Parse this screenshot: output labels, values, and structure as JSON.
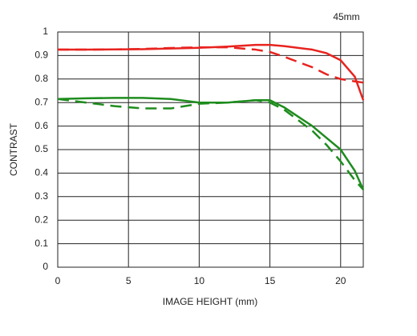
{
  "chart_data": {
    "type": "line",
    "title": "45mm",
    "x_label": "IMAGE HEIGHT (mm)",
    "y_label": "CONTRAST",
    "x": [
      0,
      2,
      4,
      6,
      8,
      10,
      12,
      14,
      15,
      16,
      18,
      19,
      20,
      21,
      21.6
    ],
    "series": [
      {
        "color": "#e8231f",
        "dash": false,
        "values": [
          0.925,
          0.925,
          0.926,
          0.927,
          0.93,
          0.933,
          0.938,
          0.945,
          0.945,
          0.94,
          0.925,
          0.91,
          0.88,
          0.81,
          0.71
        ]
      },
      {
        "color": "#e8231f",
        "dash": true,
        "values": [
          0.925,
          0.925,
          0.926,
          0.928,
          0.932,
          0.935,
          0.935,
          0.925,
          0.915,
          0.895,
          0.85,
          0.82,
          0.8,
          0.79,
          0.785
        ]
      },
      {
        "color": "#1e8c1e",
        "dash": false,
        "values": [
          0.715,
          0.718,
          0.72,
          0.72,
          0.715,
          0.7,
          0.7,
          0.71,
          0.71,
          0.68,
          0.6,
          0.55,
          0.5,
          0.41,
          0.33
        ]
      },
      {
        "color": "#1e8c1e",
        "dash": true,
        "values": [
          0.715,
          0.7,
          0.685,
          0.675,
          0.675,
          0.695,
          0.7,
          0.71,
          0.7,
          0.67,
          0.58,
          0.52,
          0.45,
          0.37,
          0.33
        ]
      }
    ],
    "xlim": [
      0,
      21.6
    ],
    "xticks": [
      0,
      5,
      10,
      15,
      20
    ],
    "ylim": [
      0,
      1
    ],
    "yticks": [
      0,
      0.1,
      0.2,
      0.3,
      0.4,
      0.5,
      0.6,
      0.7,
      0.8,
      0.9,
      1
    ],
    "grid": true
  }
}
